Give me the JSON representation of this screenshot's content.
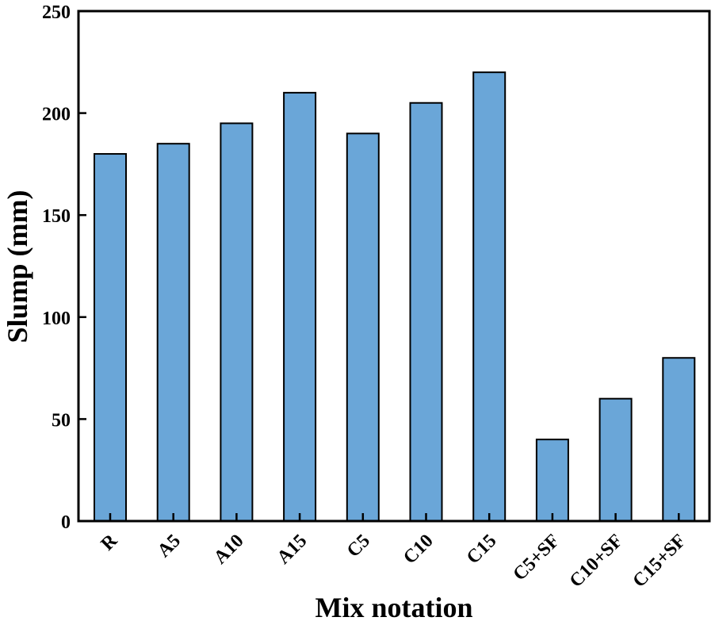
{
  "chart_data": {
    "type": "bar",
    "title": "",
    "xlabel": "Mix notation",
    "ylabel": "Slump (mm)",
    "ylim": [
      0,
      250
    ],
    "yticks": [
      0,
      50,
      100,
      150,
      200,
      250
    ],
    "grid": false,
    "categories": [
      "R",
      "A5",
      "A10",
      "A15",
      "C5",
      "C10",
      "C15",
      "C5+SF",
      "C10+SF",
      "C15+SF"
    ],
    "values": [
      180,
      185,
      195,
      210,
      190,
      205,
      220,
      40,
      60,
      80
    ],
    "bar_color": "#6aa6d8"
  }
}
